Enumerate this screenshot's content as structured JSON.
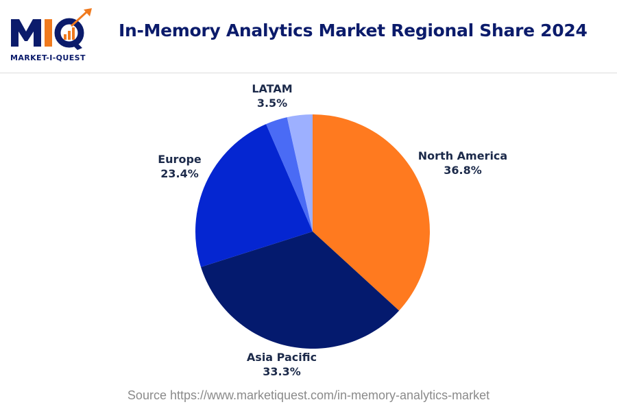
{
  "header": {
    "logo_text": "MIQ",
    "logo_subtext": "MARKET-I-QUEST",
    "title": "In-Memory Analytics Market Regional Share 2024"
  },
  "colors": {
    "brand_navy": "#0b1b6b",
    "brand_orange": "#f07a1e"
  },
  "chart_data": {
    "type": "pie",
    "title": "In-Memory Analytics Market Regional Share 2024",
    "slices": [
      {
        "name": "North America",
        "value": 36.8,
        "label": "36.8%",
        "color": "#ff7a1f"
      },
      {
        "name": "Asia Pacific",
        "value": 33.3,
        "label": "33.3%",
        "color": "#041a6e"
      },
      {
        "name": "Europe",
        "value": 23.4,
        "label": "23.4%",
        "color": "#0526d1"
      },
      {
        "name": "",
        "value": 3.0,
        "label": "",
        "color": "#4a6bf5"
      },
      {
        "name": "LATAM",
        "value": 3.5,
        "label": "3.5%",
        "color": "#9db0ff"
      }
    ]
  },
  "footer": {
    "source": "Source https://www.marketiquest.com/in-memory-analytics-market"
  }
}
